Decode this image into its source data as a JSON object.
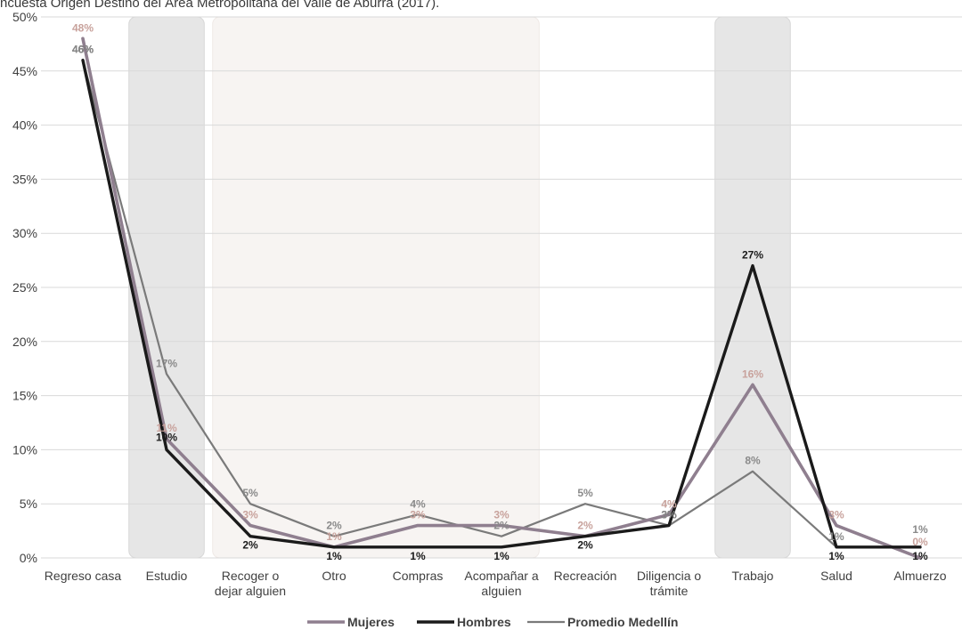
{
  "caption": "ncuesta Origen Destino del Área Metropolitana del Valle de Aburrá (2017).",
  "colors": {
    "mujeres": "#8f7f8f",
    "hombres": "#1a1a1a",
    "promedio": "#7a7a7a",
    "mujeres_label": "#c8a29c",
    "band_dark": "#e6e6e6",
    "band_light": "#f7f4f2",
    "grid": "#d9d9d9"
  },
  "chart_data": {
    "type": "line",
    "categories": [
      "Regreso casa",
      "Estudio",
      "Recoger o dejar alguien",
      "Otro",
      "Compras",
      "Acompañar a alguien",
      "Recreación",
      "Diligencia o trámite",
      "Trabajo",
      "Salud",
      "Almuerzo"
    ],
    "category_lines": [
      [
        "Regreso casa"
      ],
      [
        "Estudio"
      ],
      [
        "Recoger o",
        "dejar alguien"
      ],
      [
        "Otro"
      ],
      [
        "Compras"
      ],
      [
        "Acompañar a",
        "alguien"
      ],
      [
        "Recreación"
      ],
      [
        "Diligencia o",
        "trámite"
      ],
      [
        "Trabajo"
      ],
      [
        "Salud"
      ],
      [
        "Almuerzo"
      ]
    ],
    "ylim": [
      0,
      50
    ],
    "yticks": [
      "0%",
      "5%",
      "10%",
      "15%",
      "20%",
      "25%",
      "30%",
      "35%",
      "40%",
      "45%",
      "50%"
    ],
    "highlight_bands": [
      {
        "from": "Estudio",
        "to": "Estudio",
        "style": "dark"
      },
      {
        "from": "Recoger o dejar alguien",
        "to": "Acompañar a alguien",
        "style": "light"
      },
      {
        "from": "Trabajo",
        "to": "Trabajo",
        "style": "dark"
      }
    ],
    "legend_position": "bottom",
    "series": [
      {
        "key": "mujeres",
        "name": "Mujeres",
        "values": [
          48,
          11,
          3,
          1,
          3,
          3,
          2,
          4,
          16,
          3,
          0
        ],
        "labels": [
          "48%",
          "11%",
          "3%",
          "1%",
          "3%",
          "3%",
          "2%",
          "4%",
          "16%",
          "3%",
          "0%"
        ]
      },
      {
        "key": "hombres",
        "name": "Hombres",
        "values": [
          46,
          10,
          2,
          1,
          1,
          1,
          2,
          3,
          27,
          1,
          1
        ],
        "labels": [
          "46%",
          "10%",
          "2%",
          "1%",
          "1%",
          "1%",
          "2%",
          "3%",
          "27%",
          "1%",
          "1%"
        ]
      },
      {
        "key": "promedio",
        "name": "Promedio Medellín",
        "values": [
          46,
          17,
          5,
          2,
          4,
          2,
          5,
          3,
          8,
          1,
          1
        ],
        "labels": [
          "46%",
          "17%",
          "5%",
          "2%",
          "4%",
          "2%",
          "5%",
          "3%",
          "8%",
          "1%",
          "1%"
        ]
      }
    ]
  }
}
